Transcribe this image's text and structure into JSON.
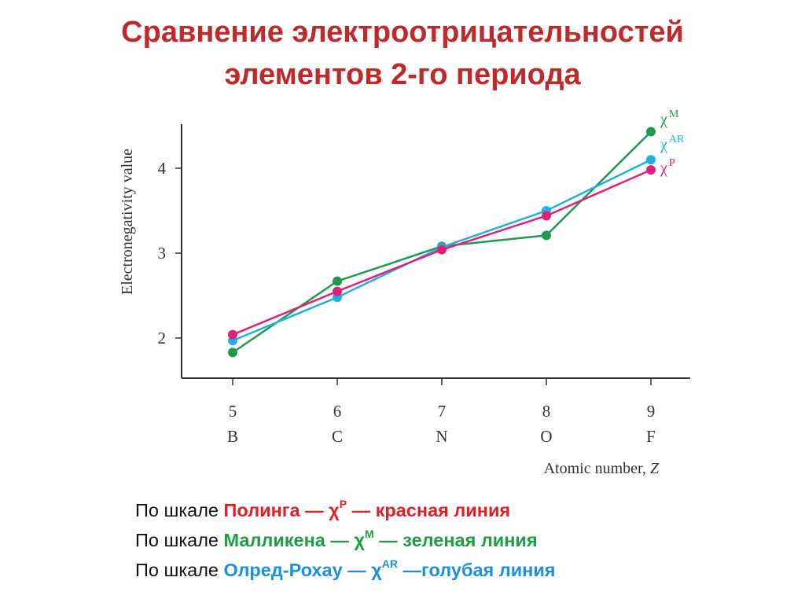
{
  "slide": {
    "title_line1": "Сравнение электроотрицательностей",
    "title_line2": "элементов 2-го периода"
  },
  "chart_data": {
    "type": "line",
    "ylabel": "Electronegativity value",
    "xlabel": "Atomic number, ",
    "xlabel_var": "Z",
    "x": [
      5,
      6,
      7,
      8,
      9
    ],
    "element_labels": [
      "B",
      "C",
      "N",
      "O",
      "F"
    ],
    "y_ticks": [
      2,
      3,
      4
    ],
    "xlim": [
      5,
      9
    ],
    "ylim": [
      1.5,
      4.7
    ],
    "grid": false,
    "legend": "right end of lines",
    "series": [
      {
        "name": "χ",
        "sup": "M",
        "color": "#1e9a50",
        "values": [
          1.83,
          2.67,
          3.08,
          3.21,
          4.43
        ]
      },
      {
        "name": "χ",
        "sup": "AR",
        "color": "#1fb0e6",
        "values": [
          1.97,
          2.48,
          3.07,
          3.5,
          4.1
        ]
      },
      {
        "name": "χ",
        "sup": "P",
        "color": "#e0207a",
        "values": [
          2.04,
          2.55,
          3.04,
          3.44,
          3.98
        ]
      }
    ]
  },
  "notes": [
    {
      "prefix": "По шкале ",
      "name": "Полинга",
      "sep": "  — χ",
      "sup": "P",
      "suffix": " — красная линия",
      "color": "#e51c23"
    },
    {
      "prefix": "По шкале ",
      "name": "Малликена",
      "sep": " — χ",
      "sup": "M",
      "suffix": " — зеленая линия",
      "color": "#1a9e3f"
    },
    {
      "prefix": "По шкале ",
      "name": "Олред-Рохау",
      "sep": " — χ",
      "sup": "AR",
      "suffix": " —голубая линия",
      "color": "#1b8fe0"
    }
  ]
}
